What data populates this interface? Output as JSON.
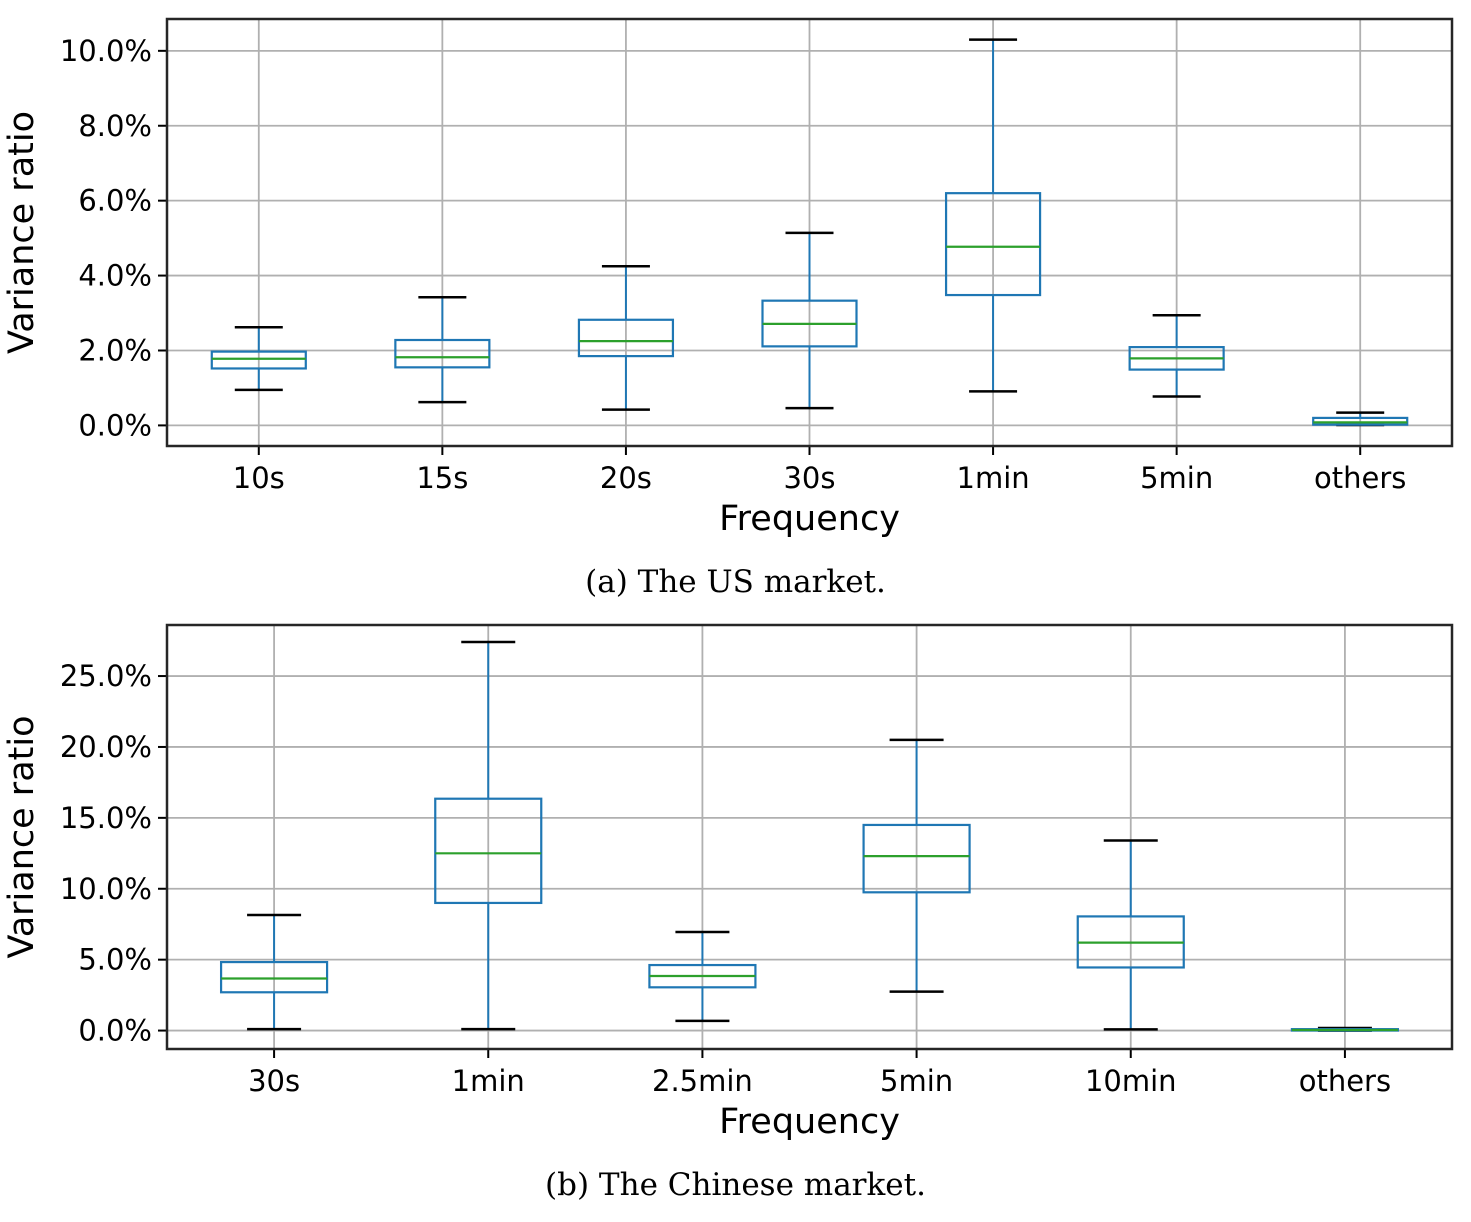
{
  "colors": {
    "box_edge": "#1f77b4",
    "median": "#2ca02c",
    "whisker": "#1f77b4",
    "cap": "#000000",
    "grid": "#b0b0b0",
    "spine": "#262626",
    "text": "#000000"
  },
  "chart_data": [
    {
      "type": "box",
      "caption": "(a) The US market.",
      "xlabel": "Frequency",
      "ylabel": "Variance ratio",
      "grid": true,
      "categories": [
        "10s",
        "15s",
        "20s",
        "30s",
        "1min",
        "5min",
        "others"
      ],
      "ylim": [
        -0.55,
        10.85
      ],
      "yticks": [
        {
          "value": 0.0,
          "label": "0.0%"
        },
        {
          "value": 2.0,
          "label": "2.0%"
        },
        {
          "value": 4.0,
          "label": "4.0%"
        },
        {
          "value": 6.0,
          "label": "6.0%"
        },
        {
          "value": 8.0,
          "label": "8.0%"
        },
        {
          "value": 10.0,
          "label": "10.0%"
        }
      ],
      "boxes": [
        {
          "category": "10s",
          "whisker_low": 0.95,
          "q1": 1.52,
          "median": 1.78,
          "q3": 1.97,
          "whisker_high": 2.62
        },
        {
          "category": "15s",
          "whisker_low": 0.62,
          "q1": 1.55,
          "median": 1.82,
          "q3": 2.28,
          "whisker_high": 3.42
        },
        {
          "category": "20s",
          "whisker_low": 0.42,
          "q1": 1.85,
          "median": 2.25,
          "q3": 2.82,
          "whisker_high": 4.25
        },
        {
          "category": "30s",
          "whisker_low": 0.46,
          "q1": 2.11,
          "median": 2.71,
          "q3": 3.33,
          "whisker_high": 5.14
        },
        {
          "category": "1min",
          "whisker_low": 0.91,
          "q1": 3.48,
          "median": 4.77,
          "q3": 6.2,
          "whisker_high": 10.3
        },
        {
          "category": "5min",
          "whisker_low": 0.77,
          "q1": 1.49,
          "median": 1.79,
          "q3": 2.09,
          "whisker_high": 2.94
        },
        {
          "category": "others",
          "whisker_low": 0.01,
          "q1": 0.02,
          "median": 0.08,
          "q3": 0.2,
          "whisker_high": 0.34
        }
      ]
    },
    {
      "type": "box",
      "caption": "(b) The Chinese market.",
      "xlabel": "Frequency",
      "ylabel": "Variance ratio",
      "grid": true,
      "categories": [
        "30s",
        "1min",
        "2.5min",
        "5min",
        "10min",
        "others"
      ],
      "ylim": [
        -1.3,
        28.6
      ],
      "yticks": [
        {
          "value": 0.0,
          "label": "0.0%"
        },
        {
          "value": 5.0,
          "label": "5.0%"
        },
        {
          "value": 10.0,
          "label": "10.0%"
        },
        {
          "value": 15.0,
          "label": "15.0%"
        },
        {
          "value": 20.0,
          "label": "20.0%"
        },
        {
          "value": 25.0,
          "label": "25.0%"
        }
      ],
      "boxes": [
        {
          "category": "30s",
          "whisker_low": 0.1,
          "q1": 2.7,
          "median": 3.67,
          "q3": 4.83,
          "whisker_high": 8.15
        },
        {
          "category": "1min",
          "whisker_low": 0.1,
          "q1": 9.0,
          "median": 12.5,
          "q3": 16.35,
          "whisker_high": 27.4
        },
        {
          "category": "2.5min",
          "whisker_low": 0.68,
          "q1": 3.05,
          "median": 3.85,
          "q3": 4.62,
          "whisker_high": 6.95
        },
        {
          "category": "5min",
          "whisker_low": 2.75,
          "q1": 9.75,
          "median": 12.3,
          "q3": 14.5,
          "whisker_high": 20.5
        },
        {
          "category": "10min",
          "whisker_low": 0.08,
          "q1": 4.45,
          "median": 6.2,
          "q3": 8.05,
          "whisker_high": 13.4
        },
        {
          "category": "others",
          "whisker_low": 0.0,
          "q1": 0.0,
          "median": 0.04,
          "q3": 0.1,
          "whisker_high": 0.18
        }
      ]
    }
  ]
}
